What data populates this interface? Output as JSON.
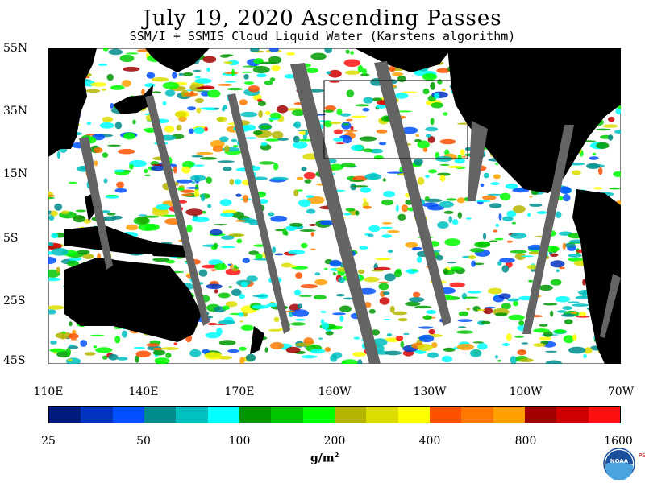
{
  "title": "July 19, 2020  Ascending Passes",
  "subtitle": "SSM/I + SSMIS Cloud Liquid Water (Karstens algorithm)",
  "lat_labels": [
    "55N",
    "35N",
    "15N",
    "5S",
    "25S",
    "45S"
  ],
  "lon_labels": [
    "110E",
    "140E",
    "170E",
    "160W",
    "130W",
    "100W",
    "70W"
  ],
  "colorbar": {
    "colors": [
      "#001a80",
      "#0033c0",
      "#0050ff",
      "#008c8c",
      "#00c0c0",
      "#00ffff",
      "#009600",
      "#00c800",
      "#00ff00",
      "#b4b400",
      "#dcdc00",
      "#ffff00",
      "#ff5000",
      "#ff7800",
      "#ffa000",
      "#a00000",
      "#d00000",
      "#ff1010"
    ],
    "tick_labels": [
      "25",
      "50",
      "100",
      "200",
      "400",
      "800",
      "1600"
    ]
  },
  "units": "g/m",
  "units_exp": "2",
  "colors": {
    "land": "#000000",
    "missing_swath": "#646464",
    "ocean_clear": "#ffffff"
  },
  "logo": {
    "name": "noaa-logo",
    "text": "NOAA",
    "side_text": "PSL"
  }
}
